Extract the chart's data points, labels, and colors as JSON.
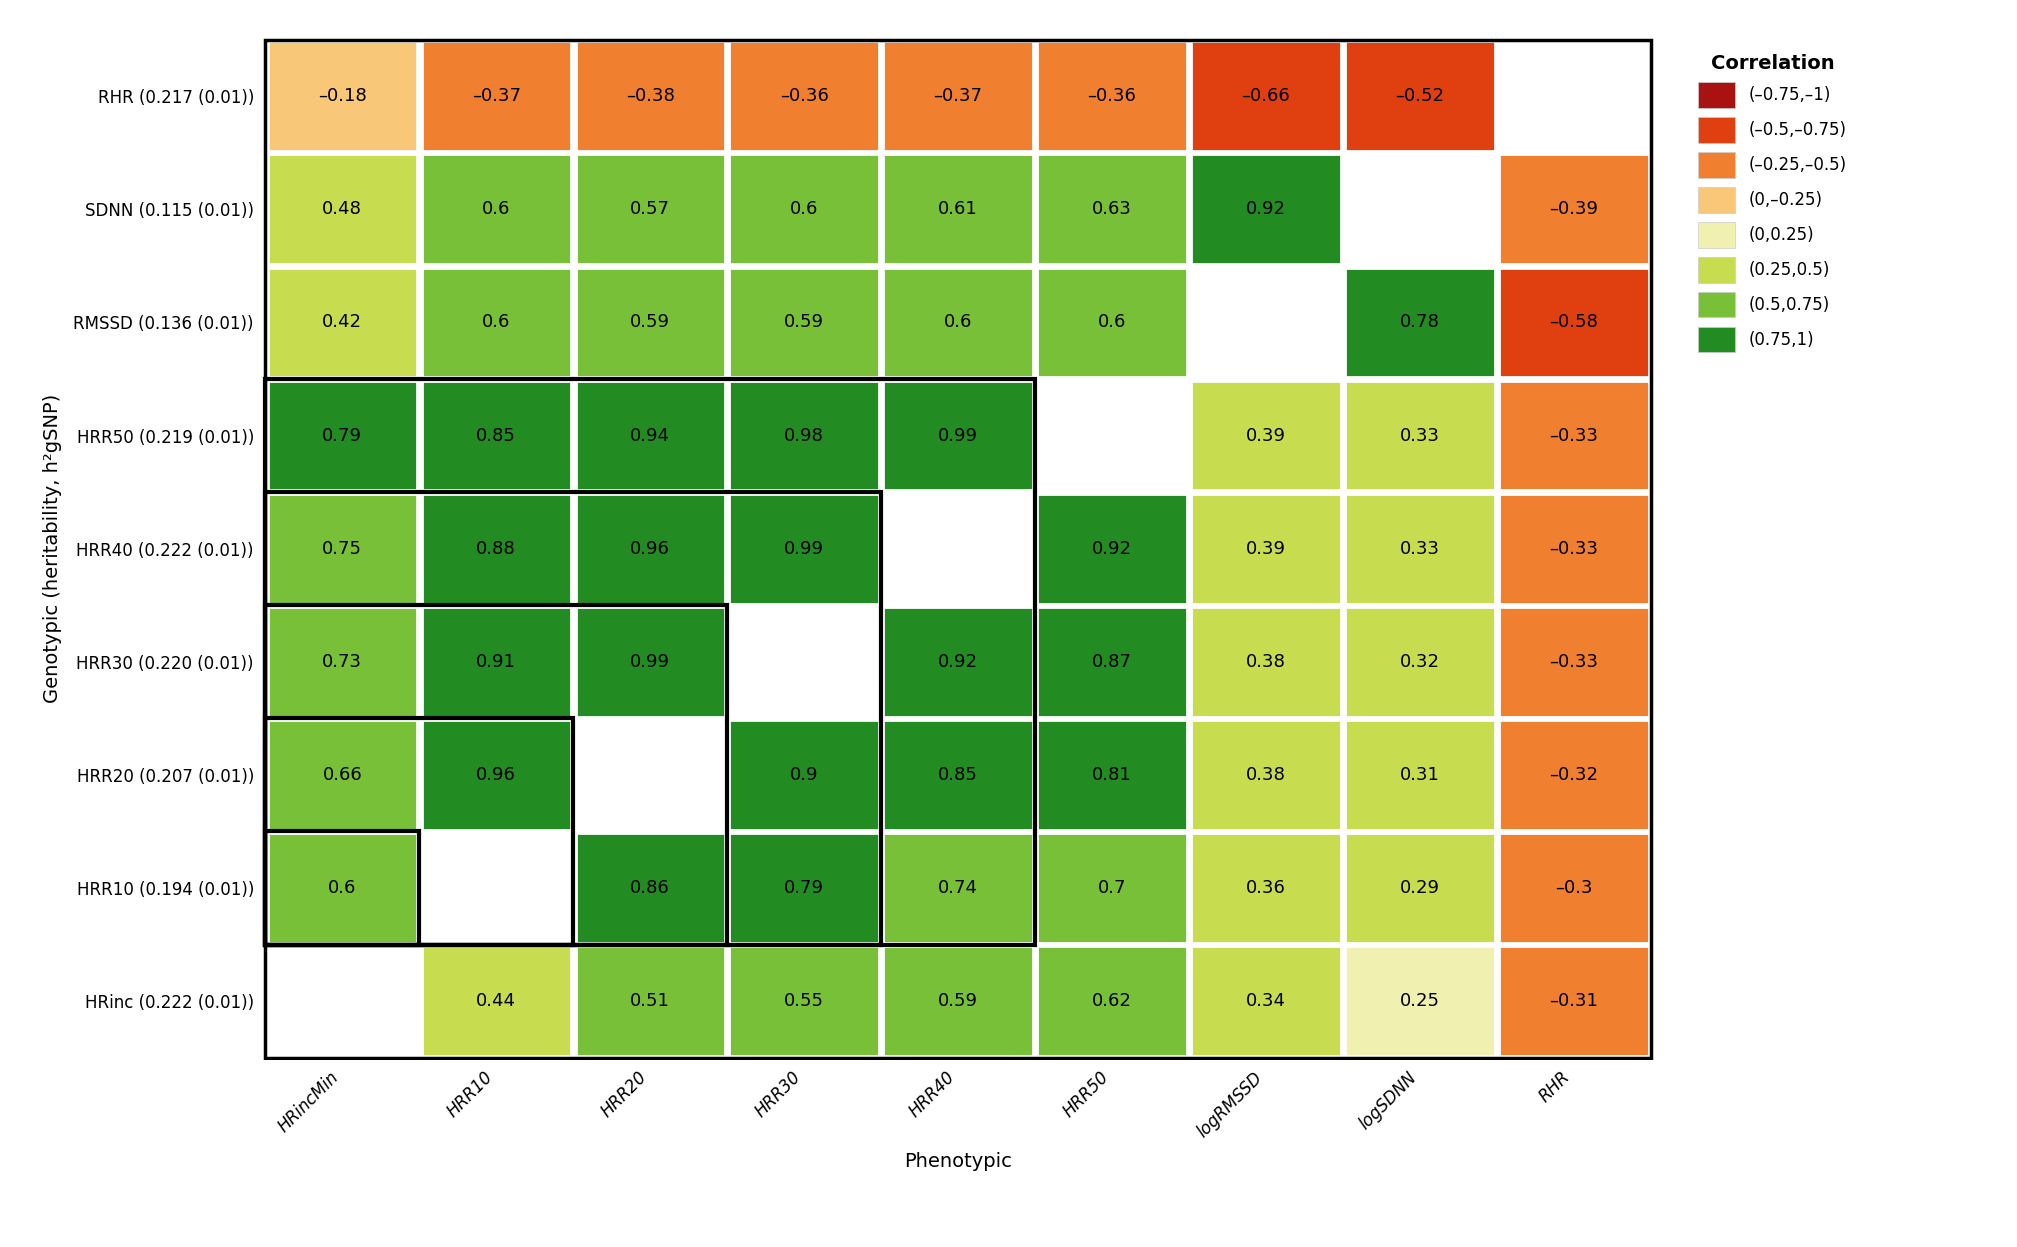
{
  "row_labels": [
    "RHR (0.217 (0.01))",
    "SDNN (0.115 (0.01))",
    "RMSSD (0.136 (0.01))",
    "HRR50 (0.219 (0.01))",
    "HRR40 (0.222 (0.01))",
    "HRR30 (0.220 (0.01))",
    "HRR20 (0.207 (0.01))",
    "HRR10 (0.194 (0.01))",
    "HRinc (0.222 (0.01))"
  ],
  "col_labels": [
    "HRincMin",
    "HRR10",
    "HRR20",
    "HRR30",
    "HRR40",
    "HRR50",
    "logRMSSD",
    "logSDNN",
    "RHR"
  ],
  "values": [
    [
      -0.18,
      -0.37,
      -0.38,
      -0.36,
      -0.37,
      -0.36,
      -0.66,
      -0.52,
      null
    ],
    [
      0.48,
      0.6,
      0.57,
      0.6,
      0.61,
      0.63,
      0.92,
      null,
      -0.39
    ],
    [
      0.42,
      0.6,
      0.59,
      0.59,
      0.6,
      0.6,
      null,
      0.78,
      -0.58
    ],
    [
      0.79,
      0.85,
      0.94,
      0.98,
      0.99,
      null,
      0.39,
      0.33,
      -0.33
    ],
    [
      0.75,
      0.88,
      0.96,
      0.99,
      null,
      0.92,
      0.39,
      0.33,
      -0.33
    ],
    [
      0.73,
      0.91,
      0.99,
      null,
      0.92,
      0.87,
      0.38,
      0.32,
      -0.33
    ],
    [
      0.66,
      0.96,
      null,
      0.9,
      0.85,
      0.81,
      0.38,
      0.31,
      -0.32
    ],
    [
      0.6,
      null,
      0.86,
      0.79,
      0.74,
      0.7,
      0.36,
      0.29,
      -0.3
    ],
    [
      null,
      0.44,
      0.51,
      0.55,
      0.59,
      0.62,
      0.34,
      0.25,
      -0.31
    ]
  ],
  "color_bins": {
    "(-0.75,-1)": "#AA1111",
    "(-0.5,-0.75)": "#E04010",
    "(-0.25,-0.5)": "#F08030",
    "(0,-0.25)": "#F8C878",
    "(0,0.25)": "#F0F0B0",
    "(0.25,0.5)": "#C8DC50",
    "(0.5,0.75)": "#78C038",
    "(0.75,1)": "#228B22"
  },
  "legend_labels": [
    "(–0.75,–1)",
    "(–0.5,–0.75)",
    "(–0.25,–0.5)",
    "(0,–0.25)",
    "(0,0.25)",
    "(0.25,0.5)",
    "(0.5,0.75)",
    "(0.75,1)"
  ],
  "legend_colors": [
    "#AA1111",
    "#E04010",
    "#F08030",
    "#F8C878",
    "#F0F0B0",
    "#C8DC50",
    "#78C038",
    "#228B22"
  ],
  "display_values": [
    [
      "–0.18",
      "–0.37",
      "–0.38",
      "–0.36",
      "–0.37",
      "–0.36",
      "–0.66",
      "–0.52",
      null
    ],
    [
      "0.48",
      "0.6",
      "0.57",
      "0.6",
      "0.61",
      "0.63",
      "0.92",
      null,
      "–0.39"
    ],
    [
      "0.42",
      "0.6",
      "0.59",
      "0.59",
      "0.6",
      "0.6",
      null,
      "0.78",
      "–0.58"
    ],
    [
      "0.79",
      "0.85",
      "0.94",
      "0.98",
      "0.99",
      null,
      "0.39",
      "0.33",
      "–0.33"
    ],
    [
      "0.75",
      "0.88",
      "0.96",
      "0.99",
      null,
      "0.92",
      "0.39",
      "0.33",
      "–0.33"
    ],
    [
      "0.73",
      "0.91",
      "0.99",
      null,
      "0.92",
      "0.87",
      "0.38",
      "0.32",
      "–0.33"
    ],
    [
      "0.66",
      "0.96",
      null,
      "0.9",
      "0.85",
      "0.81",
      "0.38",
      "0.31",
      "–0.32"
    ],
    [
      "0.6",
      null,
      "0.86",
      "0.79",
      "0.74",
      "0.7",
      "0.36",
      "0.29",
      "–0.3"
    ],
    [
      null,
      "0.44",
      "0.51",
      "0.55",
      "0.59",
      "0.62",
      "0.34",
      "0.25",
      "–0.31"
    ]
  ],
  "xlabel": "Phenotypic",
  "ylabel": "Genotypic (heritability, h²gSNP)",
  "legend_title": "Correlation",
  "background_color": "#ffffff",
  "text_fontsize": 13,
  "label_fontsize": 12,
  "axis_label_fontsize": 14
}
